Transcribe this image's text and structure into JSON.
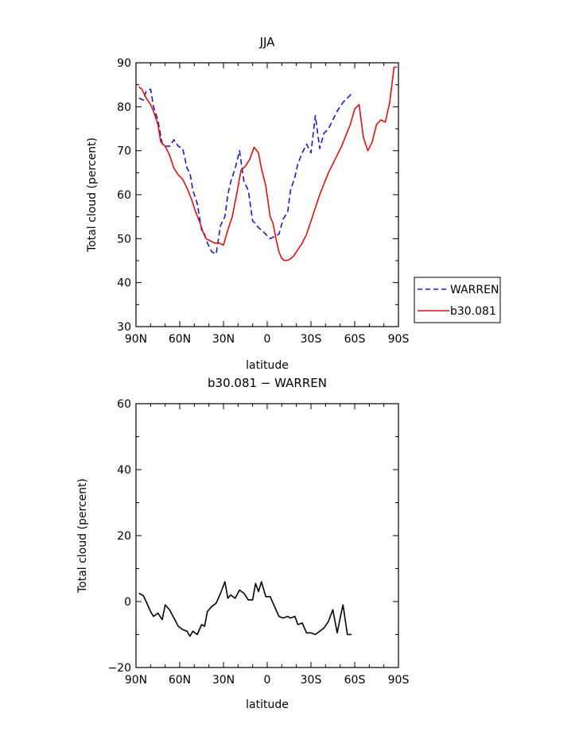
{
  "chart_data": [
    {
      "type": "line",
      "title": "JJA",
      "xlabel": "latitude",
      "ylabel": "Total cloud (percent)",
      "xlim": [
        90,
        -90
      ],
      "ylim": [
        30,
        90
      ],
      "x_ticks": [
        90,
        60,
        30,
        0,
        -30,
        -60,
        -90
      ],
      "x_tick_labels": [
        "90N",
        "60N",
        "30N",
        "0",
        "30S",
        "60S",
        "90S"
      ],
      "y_ticks": [
        30,
        40,
        50,
        60,
        70,
        80,
        90
      ],
      "y_tick_labels": [
        "30",
        "40",
        "50",
        "60",
        "70",
        "80",
        "90"
      ],
      "legend_position": "right",
      "series": [
        {
          "name": "WARREN",
          "color": "#1a1acc",
          "dash": "dashed",
          "x": [
            88,
            85,
            83,
            80,
            78,
            75,
            72,
            70,
            67,
            64,
            61,
            58,
            55,
            53,
            51,
            48,
            45,
            43,
            41,
            38,
            35,
            32,
            29,
            27,
            25,
            22,
            19,
            16,
            13,
            10,
            8,
            6,
            4,
            1,
            -2,
            -5,
            -8,
            -11,
            -14,
            -16,
            -19,
            -21,
            -24,
            -27,
            -30,
            -33,
            -36,
            -39,
            -42,
            -45,
            -48,
            -50,
            -52,
            -55,
            -58
          ],
          "y": [
            82,
            81.5,
            83.5,
            84,
            80,
            77,
            71.5,
            71,
            71,
            72.5,
            71,
            70.5,
            66,
            65,
            61,
            58,
            52,
            51,
            49,
            47,
            46.5,
            53,
            55,
            60,
            63,
            66,
            70,
            63,
            61,
            54,
            53.5,
            52.5,
            52,
            51,
            50,
            50.5,
            51,
            54.5,
            56,
            61,
            64,
            67,
            69.5,
            71.5,
            69.5,
            78,
            70.5,
            74,
            75,
            77,
            79,
            80,
            81,
            82,
            83
          ]
        },
        {
          "name": "b30.081",
          "color": "#e01010",
          "dash": "solid",
          "x": [
            88,
            86,
            83,
            80,
            78,
            75,
            73,
            70,
            67,
            64,
            61,
            58,
            55,
            52,
            49,
            46,
            44,
            42,
            39,
            36,
            33,
            30,
            27,
            24,
            21,
            18,
            15,
            12,
            9,
            6,
            4,
            1,
            -2,
            -4,
            -6,
            -8,
            -10,
            -12,
            -15,
            -18,
            -21,
            -24,
            -27,
            -30,
            -33,
            -36,
            -39,
            -42,
            -45,
            -48,
            -51,
            -54,
            -57,
            -60,
            -63,
            -66,
            -69,
            -72,
            -75,
            -78,
            -81,
            -84,
            -87,
            -89
          ],
          "y": [
            84.5,
            84,
            82,
            80.5,
            79,
            76,
            72,
            71,
            69,
            66,
            64.5,
            63.5,
            61.5,
            59,
            56,
            53.5,
            51.5,
            50,
            49.5,
            49,
            49,
            48.5,
            52,
            55,
            60,
            65.5,
            66.5,
            68,
            70.8,
            69.5,
            66,
            62,
            55,
            53.5,
            50,
            47,
            45.5,
            45,
            45.2,
            46,
            47.5,
            49,
            51,
            54,
            57,
            60,
            62.5,
            65,
            67,
            69,
            71,
            73.5,
            76,
            79.5,
            80.5,
            73,
            70,
            72,
            76,
            77,
            76.5,
            81,
            89,
            89
          ]
        }
      ]
    },
    {
      "type": "line",
      "title": "b30.081 − WARREN",
      "xlabel": "latitude",
      "ylabel": "Total cloud (percent)",
      "xlim": [
        90,
        -90
      ],
      "ylim": [
        -20,
        60
      ],
      "x_ticks": [
        90,
        60,
        30,
        0,
        -30,
        -60,
        -90
      ],
      "x_tick_labels": [
        "90N",
        "60N",
        "30N",
        "0",
        "30S",
        "60S",
        "90S"
      ],
      "y_ticks": [
        -20,
        0,
        20,
        40,
        60
      ],
      "y_tick_labels": [
        "−20",
        "0",
        "20",
        "40",
        "60"
      ],
      "series": [
        {
          "color": "#000000",
          "dash": "solid",
          "x": [
            88,
            85,
            83,
            80,
            78,
            75,
            72,
            70,
            67,
            64,
            61,
            58,
            55,
            53,
            51,
            48,
            45,
            43,
            41,
            38,
            35,
            32,
            29,
            27,
            25,
            22,
            19,
            16,
            13,
            10,
            8,
            6,
            4,
            1,
            -2,
            -5,
            -8,
            -11,
            -14,
            -16,
            -19,
            -21,
            -24,
            -27,
            -30,
            -33,
            -36,
            -39,
            -42,
            -45,
            -48,
            -50,
            -52,
            -55,
            -58
          ],
          "y": [
            2.5,
            1.8,
            0,
            -3,
            -4.5,
            -3.5,
            -5.5,
            -1,
            -2.5,
            -5,
            -7.5,
            -8.5,
            -9,
            -10.5,
            -9,
            -10,
            -7,
            -7.5,
            -3,
            -1.5,
            -0.5,
            2.5,
            6,
            1,
            2,
            1,
            3.5,
            2.5,
            0.5,
            0.5,
            5.5,
            3,
            6,
            1.5,
            1.5,
            -1.5,
            -4.5,
            -5,
            -4.5,
            -5,
            -4.5,
            -7,
            -6.5,
            -9.5,
            -9.5,
            -10,
            -9,
            -8,
            -6,
            -2.5,
            -9.5,
            -5,
            -1,
            -10,
            -10
          ]
        }
      ]
    }
  ]
}
